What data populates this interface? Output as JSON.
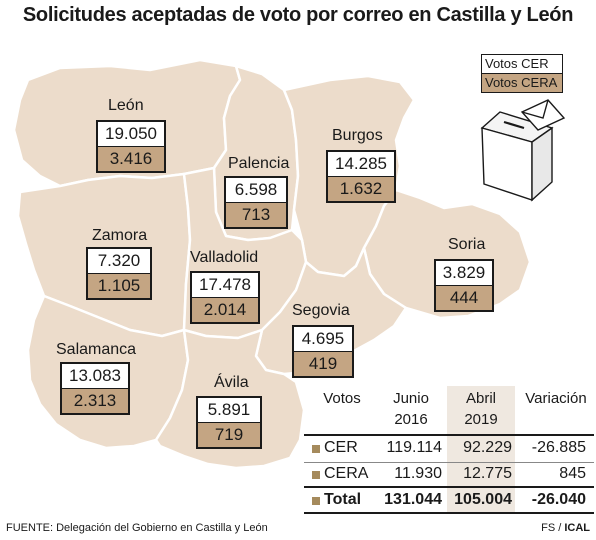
{
  "title": "Solicitudes aceptadas de voto por correo en Castilla y León",
  "legend": {
    "cer": "Votos CER",
    "cera": "Votos CERA"
  },
  "colors": {
    "map_fill": "#ecdccb",
    "map_border": "#ffffff",
    "cera_fill": "#c4a583",
    "bullet": "#a58a5c"
  },
  "icons": {
    "ballot": "ballot-box-icon"
  },
  "provinces": [
    {
      "name": "León",
      "cer": "19.050",
      "cera": "3.416"
    },
    {
      "name": "Palencia",
      "cer": "6.598",
      "cera": "713"
    },
    {
      "name": "Burgos",
      "cer": "14.285",
      "cera": "1.632"
    },
    {
      "name": "Zamora",
      "cer": "7.320",
      "cera": "1.105"
    },
    {
      "name": "Valladolid",
      "cer": "17.478",
      "cera": "2.014"
    },
    {
      "name": "Soria",
      "cer": "3.829",
      "cera": "444"
    },
    {
      "name": "Segovia",
      "cer": "4.695",
      "cera": "419"
    },
    {
      "name": "Salamanca",
      "cer": "13.083",
      "cera": "2.313"
    },
    {
      "name": "Ávila",
      "cer": "5.891",
      "cera": "719"
    }
  ],
  "table": {
    "headers": {
      "votos": "Votos",
      "junio_1": "Junio",
      "junio_2": "2016",
      "abril_1": "Abril",
      "abril_2": "2019",
      "variacion": "Variación"
    },
    "rows": [
      {
        "label": "CER",
        "junio": "119.114",
        "abril": "92.229",
        "variacion": "-26.885"
      },
      {
        "label": "CERA",
        "junio": "11.930",
        "abril": "12.775",
        "variacion": "845"
      },
      {
        "label": "Total",
        "junio": "131.044",
        "abril": "105.004",
        "variacion": "-26.040"
      }
    ]
  },
  "footer": {
    "source": "FUENTE: Delegación del Gobierno en Castilla y León",
    "credit_1": "FS / ",
    "credit_2": "ICAL"
  }
}
